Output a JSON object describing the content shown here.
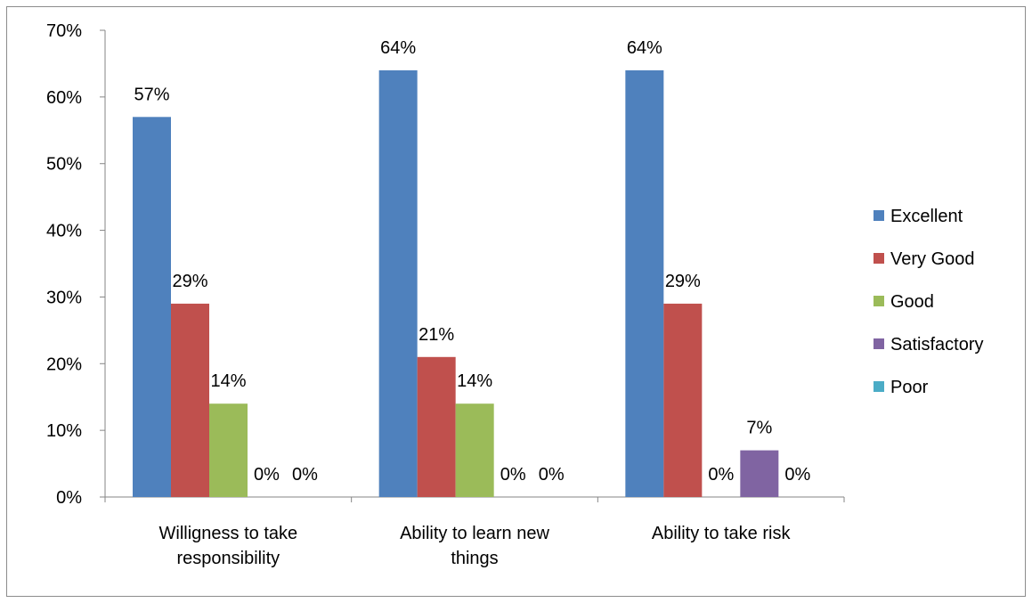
{
  "chart_data": {
    "type": "bar",
    "categories": [
      [
        "Willigness to take",
        "responsibility"
      ],
      [
        "Ability to learn new",
        "things"
      ],
      [
        "Ability to take risk"
      ]
    ],
    "series": [
      {
        "name": "Excellent",
        "color": "#4F81BD",
        "values": [
          57,
          64,
          64
        ],
        "labels": [
          "57%",
          "64%",
          "64%"
        ]
      },
      {
        "name": "Very Good",
        "color": "#C0504D",
        "values": [
          29,
          21,
          29
        ],
        "labels": [
          "29%",
          "21%",
          "29%"
        ]
      },
      {
        "name": "Good",
        "color": "#9BBB59",
        "values": [
          14,
          14,
          0
        ],
        "labels": [
          "14%",
          "14%",
          "0%"
        ]
      },
      {
        "name": "Satisfactory",
        "color": "#8064A2",
        "values": [
          0,
          0,
          7
        ],
        "labels": [
          "0%",
          "0%",
          "7%"
        ]
      },
      {
        "name": "Poor",
        "color": "#4BACC6",
        "values": [
          0,
          0,
          0
        ],
        "labels": [
          "0%",
          "0%",
          "0%"
        ]
      }
    ],
    "y_ticks": [
      "0%",
      "10%",
      "20%",
      "30%",
      "40%",
      "50%",
      "60%",
      "70%"
    ],
    "ylim": [
      0,
      70
    ],
    "y_unit": "%",
    "grid": false,
    "legend_position": "right",
    "title": "",
    "xlabel": "",
    "ylabel": ""
  }
}
